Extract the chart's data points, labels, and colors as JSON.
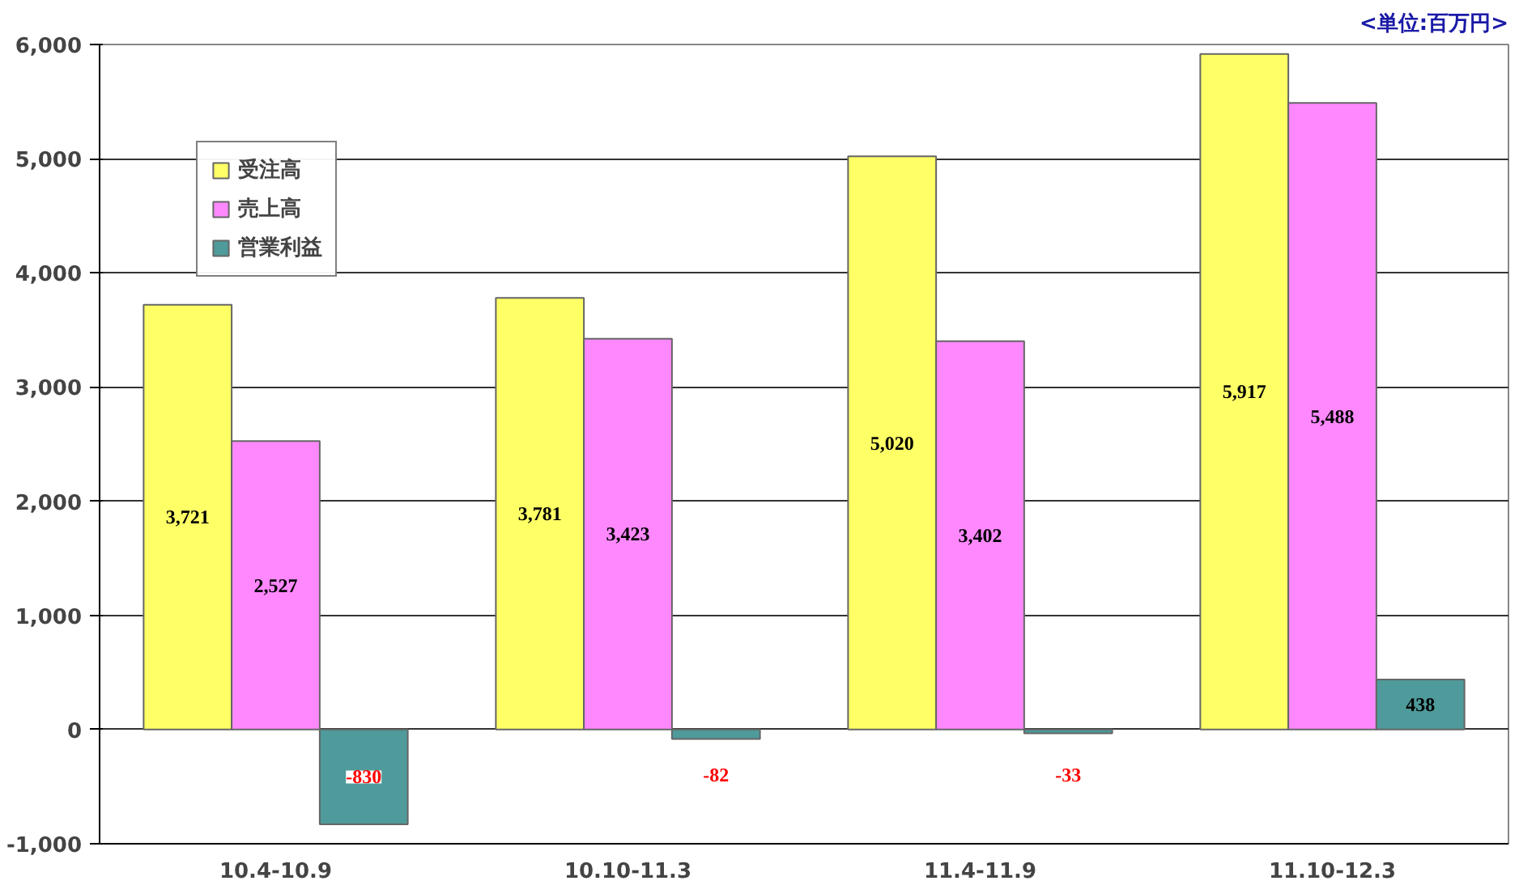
{
  "chart_data": {
    "type": "bar",
    "categories": [
      "10.4-10.9",
      "10.10-11.3",
      "11.4-11.9",
      "11.10-12.3"
    ],
    "series": [
      {
        "name": "受注高",
        "color": "#ffff66",
        "values": [
          3721,
          3781,
          5020,
          5917
        ],
        "value_labels": [
          "3,721",
          "3,781",
          "5,020",
          "5,917"
        ]
      },
      {
        "name": "売上高",
        "color": "#ff88ff",
        "values": [
          2527,
          3423,
          3402,
          5488
        ],
        "value_labels": [
          "2,527",
          "3,423",
          "3,402",
          "5,488"
        ]
      },
      {
        "name": "営業利益",
        "color": "#4f9a9a",
        "values": [
          -830,
          -82,
          -33,
          438
        ],
        "value_labels": [
          "-830",
          "-82",
          "-33",
          "438"
        ]
      }
    ],
    "ylim": [
      -1000,
      6000
    ],
    "yticks": [
      {
        "value": -1000,
        "label": "-1,000"
      },
      0,
      {
        "value": 1000,
        "label": "1,000"
      },
      {
        "value": 2000,
        "label": "2,000"
      },
      {
        "value": 3000,
        "label": "3,000"
      },
      {
        "value": 4000,
        "label": "4,000"
      },
      {
        "value": 5000,
        "label": "5,000"
      },
      {
        "value": 6000,
        "label": "6,000"
      }
    ],
    "grid": "y",
    "legend": "top left",
    "annotations": [
      "<単位:百万円>"
    ]
  }
}
